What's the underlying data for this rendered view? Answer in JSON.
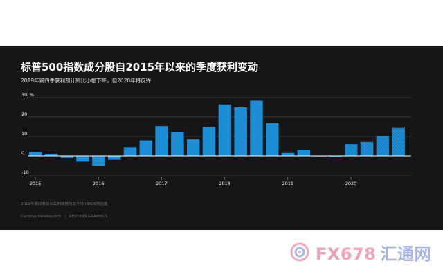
{
  "title": "标普500指数成分股自2015年以来的季度获利变动",
  "subtitle": "2019年第四季获利预计同比小幅下降，但2020年将反弹",
  "footnote": "2019年第四季及以后的数据为路孚特I/B/E/S预估值",
  "credit": {
    "author": "Caroline Valetkevitch",
    "source": "REUTERS GRAPHICS"
  },
  "colors": {
    "background": "#161618",
    "bar_actual": "#1e8fd6",
    "bar_estimate": "#1e8fd6",
    "gridline": "#555555",
    "zero_line": "#ffffff",
    "text": "#ffffff",
    "muted_text": "#6f6f6f"
  },
  "chart_data": {
    "type": "bar",
    "unit": "%",
    "ylim": [
      -10,
      30
    ],
    "yticks": [
      -10,
      0,
      10,
      20,
      30
    ],
    "grid": true,
    "x_year_labels": [
      "2015",
      "2016",
      "2017",
      "2018",
      "2019",
      "2020"
    ],
    "categories": [
      "2015 Q1",
      "2015 Q2",
      "2015 Q3",
      "2015 Q4",
      "2016 Q1",
      "2016 Q2",
      "2016 Q3",
      "2016 Q4",
      "2017 Q1",
      "2017 Q2",
      "2017 Q3",
      "2017 Q4",
      "2018 Q1",
      "2018 Q2",
      "2018 Q3",
      "2018 Q4",
      "2019 Q1",
      "2019 Q2",
      "2019 Q3",
      "2019 Q4",
      "2020 Q1",
      "2020 Q2",
      "2020 Q3",
      "2020 Q4"
    ],
    "values": [
      2.0,
      1.0,
      -1.0,
      -3.0,
      -5.0,
      -2.0,
      4.5,
      8.0,
      15.3,
      12.3,
      8.5,
      14.9,
      26.5,
      25.0,
      28.4,
      16.9,
      1.5,
      3.2,
      -0.3,
      -0.6,
      6.0,
      7.2,
      10.2,
      14.4
    ],
    "estimate": [
      false,
      false,
      false,
      false,
      false,
      false,
      false,
      false,
      false,
      false,
      false,
      false,
      false,
      false,
      false,
      false,
      false,
      false,
      false,
      true,
      true,
      true,
      true,
      true
    ]
  },
  "watermark": {
    "fx": "FX",
    "num": "678",
    "cn": "汇通网"
  }
}
